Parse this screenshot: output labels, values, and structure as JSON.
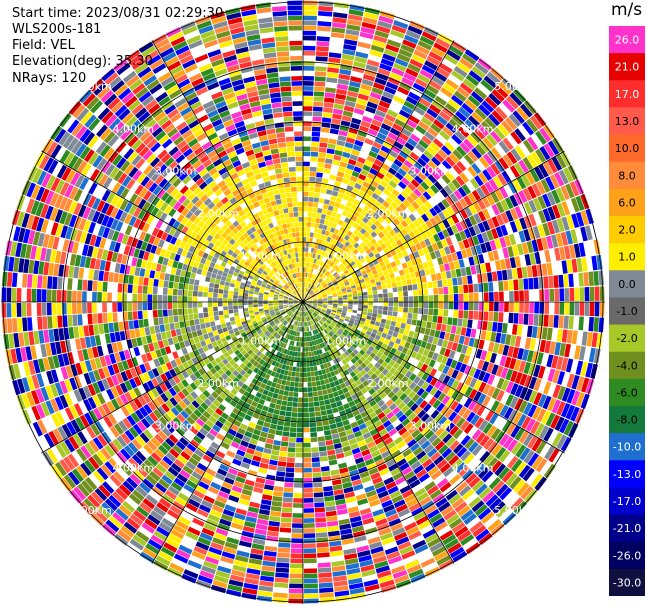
{
  "header": {
    "start_time": "Start time: 2023/08/31 02:29:30",
    "instrument": "WLS200s-181",
    "field": "Field: VEL",
    "elevation": "Elevation(deg): 35.30",
    "nrays": "NRays: 120"
  },
  "colorbar": {
    "unit": "m/s",
    "ticks": [
      "26.0",
      "21.0",
      "17.0",
      "13.0",
      "10.0",
      "8.0",
      "6.0",
      "2.0",
      "1.0",
      "0.0",
      "-1.0",
      "-2.0",
      "-4.0",
      "-6.0",
      "-8.0",
      "-10.0",
      "-13.0",
      "-17.0",
      "-21.0",
      "-26.0",
      "-30.0"
    ],
    "colors": [
      "#ff33cc",
      "#e60000",
      "#ff2e2e",
      "#ff5a4a",
      "#ff6a2a",
      "#ff8c3a",
      "#ffa21a",
      "#ffcc00",
      "#ffee00",
      "#7f8a96",
      "#6a6a6a",
      "#a8c828",
      "#6f8f1f",
      "#2e8b22",
      "#147a3c",
      "#1e6fd0",
      "#0000ff",
      "#0000cc",
      "#00008b",
      "#000060",
      "#101040"
    ]
  },
  "ppi": {
    "ring_labels": [
      "1.00km",
      "2.00km",
      "3.00km",
      "4.00km",
      "5.00km"
    ],
    "nrays": 120,
    "ngates": 60
  }
}
